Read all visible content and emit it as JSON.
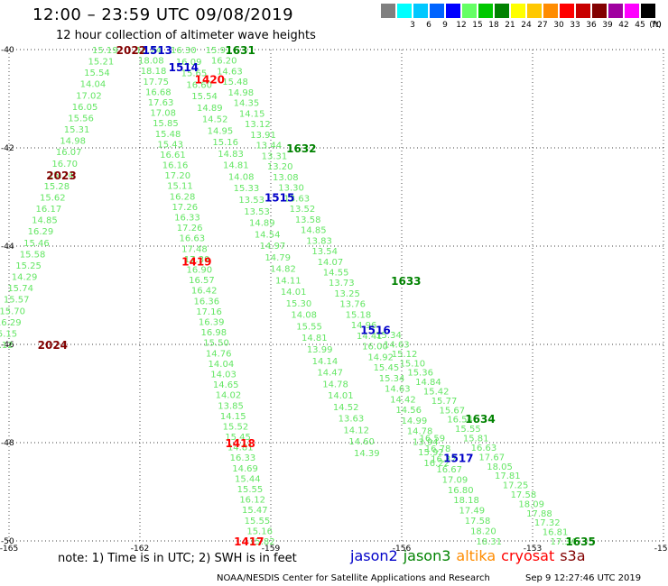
{
  "header": {
    "title": "12:00 – 23:59 UTC 09/08/2019",
    "subtitle": "12 hour collection of altimeter wave heights"
  },
  "colorbar": {
    "unit": "(ft)",
    "items": [
      {
        "label": "",
        "color": "#808080"
      },
      {
        "label": "3",
        "color": "#00ffff"
      },
      {
        "label": "6",
        "color": "#00c8ff"
      },
      {
        "label": "9",
        "color": "#0064ff"
      },
      {
        "label": "12",
        "color": "#0000ff"
      },
      {
        "label": "15",
        "color": "#64ff64"
      },
      {
        "label": "18",
        "color": "#00c800"
      },
      {
        "label": "21",
        "color": "#008200"
      },
      {
        "label": "24",
        "color": "#ffff00"
      },
      {
        "label": "27",
        "color": "#ffc800"
      },
      {
        "label": "30",
        "color": "#ff8c00"
      },
      {
        "label": "33",
        "color": "#ff0000"
      },
      {
        "label": "36",
        "color": "#c80000"
      },
      {
        "label": "39",
        "color": "#820000"
      },
      {
        "label": "42",
        "color": "#a000a0"
      },
      {
        "label": "45",
        "color": "#ff00ff"
      },
      {
        "label": "70",
        "color": "#000000"
      }
    ]
  },
  "footer": {
    "note": "note:  1) Time is in UTC;  2) SWH is in feet",
    "legend": [
      {
        "name": "jason2",
        "color": "#0000c8"
      },
      {
        "name": "jason3",
        "color": "#008200"
      },
      {
        "name": "altika",
        "color": "#ff8c00"
      },
      {
        "name": "cryosat",
        "color": "#ff0000"
      },
      {
        "name": "s3a",
        "color": "#820000"
      }
    ],
    "credit": "NOAA/NESDIS Center for Satellite Applications and Research",
    "timestamp": "Sep  9 12:27:46 UTC 2019"
  },
  "chart_data": {
    "type": "scatter",
    "xlim": [
      -165,
      -150
    ],
    "ylim": [
      -50,
      -40
    ],
    "xticks": [
      -165,
      -162,
      -159,
      -156,
      -153,
      -150
    ],
    "yticks": [
      -50,
      -48,
      -46,
      -44,
      -42,
      -40
    ],
    "xtick_labels": [
      "-165",
      "-162",
      "-159",
      "-156",
      "-153",
      "-150"
    ],
    "ytick_labels": [
      "-50",
      "-48",
      "-46",
      "-44",
      "-42",
      "-40"
    ],
    "grid": true,
    "pass_labels": [
      {
        "label": "2023",
        "lon": -163.8,
        "lat": -42.55,
        "color": "#820000"
      },
      {
        "label": "2024",
        "lon": -164.0,
        "lat": -46.0,
        "color": "#820000"
      },
      {
        "label": "2022",
        "lon": -162.2,
        "lat": -40.0,
        "color": "#820000"
      },
      {
        "label": "1513",
        "lon": -161.6,
        "lat": -40.0,
        "color": "#0000c8"
      },
      {
        "label": "1514",
        "lon": -161.0,
        "lat": -40.35,
        "color": "#0000c8"
      },
      {
        "label": "1420",
        "lon": -160.4,
        "lat": -40.6,
        "color": "#ff0000"
      },
      {
        "label": "1631",
        "lon": -159.7,
        "lat": -40.0,
        "color": "#008200"
      },
      {
        "label": "1632",
        "lon": -158.3,
        "lat": -42.0,
        "color": "#008200"
      },
      {
        "label": "1515",
        "lon": -158.8,
        "lat": -43.0,
        "color": "#0000c8"
      },
      {
        "label": "1419",
        "lon": -160.7,
        "lat": -44.3,
        "color": "#ff0000"
      },
      {
        "label": "1633",
        "lon": -155.9,
        "lat": -44.7,
        "color": "#008200"
      },
      {
        "label": "1516",
        "lon": -156.6,
        "lat": -45.7,
        "color": "#0000c8"
      },
      {
        "label": "1634",
        "lon": -154.2,
        "lat": -47.5,
        "color": "#008200"
      },
      {
        "label": "1418",
        "lon": -159.7,
        "lat": -48.0,
        "color": "#ff0000"
      },
      {
        "label": "1517",
        "lon": -154.7,
        "lat": -48.3,
        "color": "#0000c8"
      },
      {
        "label": "1417",
        "lon": -159.5,
        "lat": -50.0,
        "color": "#ff0000"
      },
      {
        "label": "1635",
        "lon": -151.9,
        "lat": -50.0,
        "color": "#008200"
      }
    ],
    "tracks": [
      {
        "color": "#64e664",
        "start": {
          "lon": -162.8,
          "lat": -40.0
        },
        "end": {
          "lon": -165.2,
          "lat": -46.0
        },
        "values": [
          "15.19",
          "15.21",
          "15.54",
          "14.04",
          "17.02",
          "16.05",
          "15.56",
          "15.31",
          "14.98",
          "16.07",
          "16.70",
          "15.74",
          "15.28",
          "15.62",
          "16.17",
          "14.85",
          "16.29",
          "15.46",
          "15.58",
          "15.25",
          "14.29",
          "15.74",
          "15.57",
          "15.70",
          "16.29",
          "15.15",
          "15.12"
        ]
      },
      {
        "color": "#64e664",
        "start": {
          "lon": -161.8,
          "lat": -40.0
        },
        "end": {
          "lon": -159.2,
          "lat": -50.0
        },
        "values": [
          "16.24",
          "18.08",
          "18.18",
          "17.75",
          "16.68",
          "17.63",
          "17.08",
          "15.85",
          "15.48",
          "15.43",
          "16.61",
          "16.16",
          "17.20",
          "15.11",
          "16.28",
          "17.26",
          "16.33",
          "17.26",
          "16.63",
          "17.48",
          "17.39",
          "16.90",
          "16.57",
          "16.42",
          "16.36",
          "17.16",
          "16.39",
          "16.98",
          "15.50",
          "14.76",
          "14.04",
          "14.03",
          "14.65",
          "14.02",
          "13.85",
          "14.15",
          "15.52",
          "15.45",
          "14.81",
          "16.33",
          "14.69",
          "15.44",
          "15.55",
          "16.12",
          "15.47",
          "15.55",
          "15.16",
          "15.82"
        ]
      },
      {
        "color": "#64e664",
        "start": {
          "lon": -161.0,
          "lat": -40.0
        },
        "end": {
          "lon": -156.8,
          "lat": -48.2
        },
        "values": [
          "16.30",
          "16.09",
          "15.65",
          "16.60",
          "15.54",
          "14.89",
          "14.52",
          "14.95",
          "15.16",
          "14.83",
          "14.81",
          "14.08",
          "15.33",
          "13.53",
          "13.53",
          "14.89",
          "14.54",
          "14.97",
          "14.79",
          "14.82",
          "14.11",
          "14.01",
          "15.30",
          "14.08",
          "15.55",
          "14.81",
          "13.99",
          "14.14",
          "14.47",
          "14.78",
          "14.01",
          "14.52",
          "13.63",
          "14.12",
          "14.60",
          "14.39"
        ]
      },
      {
        "color": "#64e664",
        "start": {
          "lon": -160.2,
          "lat": -40.0
        },
        "end": {
          "lon": -155.2,
          "lat": -48.4
        },
        "values": [
          "15.97",
          "16.20",
          "14.63",
          "15.48",
          "14.98",
          "14.35",
          "14.15",
          "13.12",
          "13.91",
          "13.44",
          "13.31",
          "13.20",
          "13.08",
          "13.30",
          "13.63",
          "13.52",
          "13.58",
          "14.85",
          "13.83",
          "13.54",
          "14.07",
          "14.55",
          "13.73",
          "13.25",
          "13.76",
          "15.18",
          "14.96",
          "14.41",
          "16.00",
          "14.92",
          "15.45",
          "15.34",
          "14.63",
          "14.42",
          "14.56",
          "14.99",
          "14.78",
          "13.94",
          "15.92",
          "16.22"
        ]
      },
      {
        "color": "#64e664",
        "start": {
          "lon": -156.3,
          "lat": -45.8
        },
        "end": {
          "lon": -152.3,
          "lat": -50.0
        },
        "values": [
          "15.34",
          "14.63",
          "15.12",
          "15.10",
          "15.36",
          "14.84",
          "15.42",
          "15.77",
          "15.67",
          "16.54",
          "15.55",
          "15.81",
          "16.63",
          "17.67",
          "18.05",
          "17.81",
          "17.25",
          "17.58",
          "18.09",
          "17.88",
          "17.32",
          "16.81",
          "17.34"
        ]
      },
      {
        "color": "#64e664",
        "start": {
          "lon": -155.3,
          "lat": -47.9
        },
        "end": {
          "lon": -154.0,
          "lat": -50.0
        },
        "values": [
          "16.59",
          "16.78",
          "16.37",
          "16.67",
          "17.09",
          "16.80",
          "18.18",
          "17.49",
          "17.58",
          "18.20",
          "18.31"
        ]
      }
    ]
  }
}
